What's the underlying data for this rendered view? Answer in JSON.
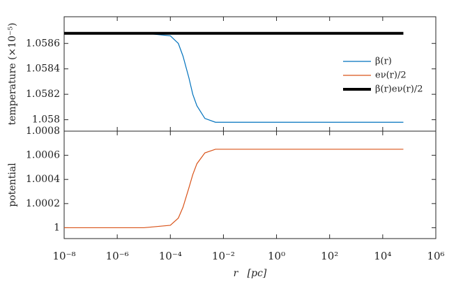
{
  "chart_data": [
    {
      "type": "line",
      "ylabel": "temperature (×10⁻⁵)",
      "xscale": "log",
      "xlim": [
        1e-08,
        1000000.0
      ],
      "xticks": [
        1e-08,
        1e-06,
        0.0001,
        0.01,
        1,
        100,
        10000,
        1000000
      ],
      "ylim": [
        1.05791,
        1.05881
      ],
      "yticks": [
        1.058,
        1.0582,
        1.0584,
        1.0586
      ],
      "legend": "right",
      "series": [
        {
          "name": "β(r)",
          "color": "#0072bd",
          "width": 1.2,
          "x": [
            1e-08,
            1e-05,
            0.0001,
            0.0002,
            0.0003,
            0.0005,
            0.0007,
            0.001,
            0.002,
            0.005,
            0.01,
            1,
            60000
          ],
          "values": [
            1.05868,
            1.05868,
            1.05866,
            1.0586,
            1.0585,
            1.05833,
            1.0582,
            1.05811,
            1.05801,
            1.05798,
            1.05798,
            1.05798,
            1.05798
          ]
        },
        {
          "name": "eν(r)/2",
          "color": "#d95319",
          "width": 1.2,
          "x": [],
          "values": []
        },
        {
          "name": "β(r)eν(r)/2",
          "color": "#000000",
          "width": 4,
          "x": [
            1e-08,
            60000
          ],
          "values": [
            1.05868,
            1.05868
          ]
        }
      ]
    },
    {
      "type": "line",
      "ylabel": "potential",
      "xlabel": "r   [pc]",
      "xscale": "log",
      "xlim": [
        1e-08,
        1000000.0
      ],
      "xticks": [
        {
          "value": 1e-08,
          "label": "10⁻⁸"
        },
        {
          "value": 1e-06,
          "label": "10⁻⁶"
        },
        {
          "value": 0.0001,
          "label": "10⁻⁴"
        },
        {
          "value": 0.01,
          "label": "10⁻²"
        },
        {
          "value": 1,
          "label": "10⁰"
        },
        {
          "value": 100,
          "label": "10²"
        },
        {
          "value": 10000,
          "label": "10⁴"
        },
        {
          "value": 1000000,
          "label": "10⁶"
        }
      ],
      "ylim": [
        0.99991,
        1.0008
      ],
      "yticks": [
        1,
        1.0002,
        1.0004,
        1.0006,
        1.0008
      ],
      "series": [
        {
          "name": "eν(r)/2",
          "color": "#d95319",
          "width": 1.2,
          "x": [
            1e-08,
            1e-05,
            0.0001,
            0.0002,
            0.0003,
            0.0005,
            0.0007,
            0.001,
            0.002,
            0.005,
            0.01,
            1,
            60000
          ],
          "values": [
            1,
            1,
            1.00002,
            1.00008,
            1.00017,
            1.00033,
            1.00044,
            1.00053,
            1.00062,
            1.00065,
            1.00065,
            1.00065,
            1.00065
          ]
        }
      ]
    }
  ]
}
